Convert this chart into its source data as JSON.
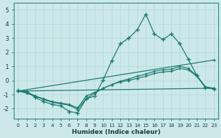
{
  "xlabel": "Humidex (Indice chaleur)",
  "bg_color": "#cce8e8",
  "line_color": "#1a7a6e",
  "xlim": [
    -0.5,
    23.5
  ],
  "ylim": [
    -2.7,
    5.5
  ],
  "yticks": [
    -2,
    -1,
    0,
    1,
    2,
    3,
    4,
    5
  ],
  "xticks": [
    0,
    1,
    2,
    3,
    4,
    5,
    6,
    7,
    8,
    9,
    10,
    11,
    12,
    13,
    14,
    15,
    16,
    17,
    18,
    19,
    20,
    21,
    22,
    23
  ],
  "line1_x": [
    0,
    1,
    2,
    3,
    4,
    5,
    6,
    7,
    8,
    9,
    10,
    11,
    12,
    13,
    14,
    15,
    16,
    17,
    18,
    19,
    20,
    21,
    22,
    23
  ],
  "line1_y": [
    -0.7,
    -0.8,
    -1.2,
    -1.5,
    -1.7,
    -1.8,
    -2.2,
    -2.3,
    -1.3,
    -1.1,
    0.05,
    1.4,
    2.6,
    3.0,
    3.6,
    4.7,
    3.3,
    2.9,
    3.3,
    2.6,
    1.5,
    0.35,
    -0.5,
    -0.6
  ],
  "line2_x": [
    0,
    1,
    2,
    3,
    4,
    5,
    6,
    7,
    8,
    9,
    10,
    11,
    12,
    13,
    14,
    15,
    16,
    17,
    18,
    19,
    20,
    21,
    22,
    23
  ],
  "line2_y": [
    -0.75,
    -0.8,
    -1.1,
    -1.35,
    -1.55,
    -1.65,
    -1.75,
    -2.05,
    -1.3,
    -0.9,
    -0.55,
    -0.3,
    -0.1,
    0.0,
    0.15,
    0.3,
    0.5,
    0.6,
    0.65,
    0.85,
    0.75,
    0.3,
    -0.5,
    -0.6
  ],
  "line3_x": [
    0,
    1,
    2,
    3,
    4,
    5,
    6,
    7,
    8,
    9,
    10,
    11,
    12,
    13,
    14,
    15,
    16,
    17,
    18,
    19,
    20,
    21,
    22,
    23
  ],
  "line3_y": [
    -0.75,
    -0.9,
    -1.1,
    -1.3,
    -1.5,
    -1.6,
    -1.7,
    -1.95,
    -1.1,
    -0.85,
    -0.55,
    -0.3,
    -0.05,
    0.1,
    0.3,
    0.45,
    0.65,
    0.75,
    0.8,
    1.0,
    0.85,
    0.35,
    -0.45,
    -0.55
  ],
  "line4_x": [
    0,
    23
  ],
  "line4_y": [
    -0.75,
    1.45
  ],
  "line5_x": [
    0,
    23
  ],
  "line5_y": [
    -0.75,
    -0.55
  ]
}
